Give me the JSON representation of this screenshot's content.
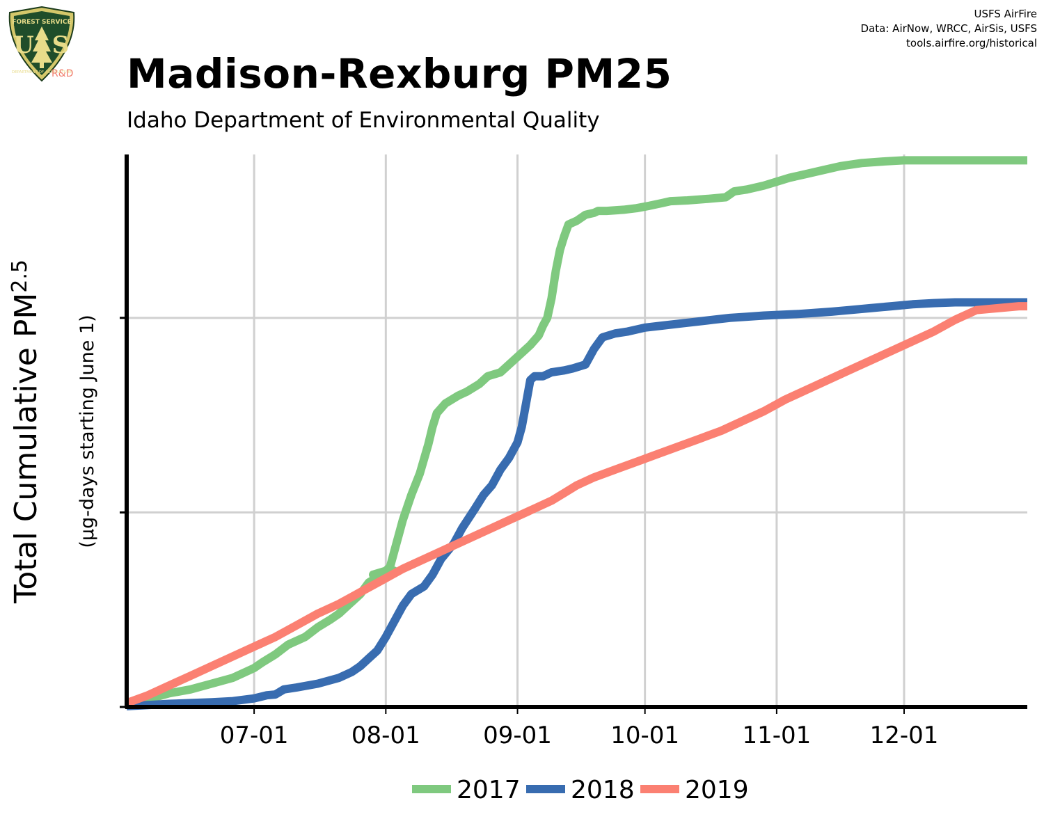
{
  "credits": {
    "line1": "USFS AirFire",
    "line2": "Data: AirNow, WRCC, AirSis, USFS",
    "line3": "tools.airfire.org/historical"
  },
  "logo": {
    "text_top": "FOREST SERVICE",
    "text_letters": "U S",
    "text_bottom": "DEPARTMENT OF AGRICULTURE",
    "tag": "R&D"
  },
  "title": "Madison-Rexburg PM25",
  "subtitle": "Idaho Department of Environmental Quality",
  "colors": {
    "2017": "#7fc97f",
    "2018": "#386cb0",
    "2019": "#fb8072"
  },
  "chart_data": {
    "type": "line",
    "title": "Madison-Rexburg PM25",
    "subtitle": "Idaho Department of Environmental Quality",
    "ylabel_main": "Total Cumulative PM",
    "ylabel_sub": "2.5",
    "ylabel_units": "(µg-days starting June 1)",
    "x_ticks": [
      "07-01",
      "08-01",
      "09-01",
      "10-01",
      "11-01",
      "12-01"
    ],
    "x_range_days": [
      0,
      212
    ],
    "y_range": [
      0,
      1420
    ],
    "y_ticks": [
      0,
      500,
      1000
    ],
    "grid": true,
    "legend_position": "bottom",
    "series": [
      {
        "name": "2017",
        "color": "#7fc97f",
        "points": [
          [
            0,
            5
          ],
          [
            5,
            20
          ],
          [
            10,
            35
          ],
          [
            15,
            45
          ],
          [
            20,
            60
          ],
          [
            25,
            75
          ],
          [
            28,
            90
          ],
          [
            30,
            100
          ],
          [
            32,
            115
          ],
          [
            35,
            135
          ],
          [
            38,
            160
          ],
          [
            42,
            180
          ],
          [
            45,
            205
          ],
          [
            48,
            225
          ],
          [
            50,
            240
          ],
          [
            52,
            260
          ],
          [
            55,
            290
          ],
          [
            57,
            320
          ],
          [
            60,
            340
          ],
          [
            63,
            350
          ],
          [
            60,
            345
          ],
          [
            58,
            340
          ],
          [
            61,
            350
          ],
          [
            62,
            360
          ],
          [
            63,
            400
          ],
          [
            64,
            440
          ],
          [
            65,
            480
          ],
          [
            67,
            545
          ],
          [
            69,
            600
          ],
          [
            71,
            675
          ],
          [
            72,
            720
          ],
          [
            73,
            755
          ],
          [
            75,
            780
          ],
          [
            78,
            800
          ],
          [
            80,
            810
          ],
          [
            83,
            830
          ],
          [
            85,
            850
          ],
          [
            88,
            860
          ],
          [
            90,
            880
          ],
          [
            93,
            910
          ],
          [
            95,
            930
          ],
          [
            97,
            955
          ],
          [
            98,
            980
          ],
          [
            99,
            1000
          ],
          [
            100,
            1050
          ],
          [
            101,
            1120
          ],
          [
            102,
            1175
          ],
          [
            103,
            1210
          ],
          [
            104,
            1240
          ],
          [
            106,
            1250
          ],
          [
            108,
            1265
          ],
          [
            110,
            1270
          ],
          [
            111,
            1275
          ],
          [
            113,
            1275
          ],
          [
            117,
            1278
          ],
          [
            120,
            1282
          ],
          [
            123,
            1288
          ],
          [
            126,
            1295
          ],
          [
            128,
            1300
          ],
          [
            132,
            1302
          ],
          [
            137,
            1306
          ],
          [
            141,
            1310
          ],
          [
            143,
            1325
          ],
          [
            146,
            1330
          ],
          [
            150,
            1340
          ],
          [
            153,
            1350
          ],
          [
            156,
            1360
          ],
          [
            160,
            1370
          ],
          [
            164,
            1380
          ],
          [
            168,
            1390
          ],
          [
            173,
            1398
          ],
          [
            178,
            1402
          ],
          [
            183,
            1405
          ],
          [
            195,
            1405
          ],
          [
            212,
            1405
          ]
        ]
      },
      {
        "name": "2018",
        "color": "#386cb0",
        "points": [
          [
            0,
            2
          ],
          [
            5,
            5
          ],
          [
            10,
            8
          ],
          [
            15,
            10
          ],
          [
            20,
            12
          ],
          [
            25,
            15
          ],
          [
            30,
            22
          ],
          [
            33,
            30
          ],
          [
            35,
            32
          ],
          [
            37,
            45
          ],
          [
            40,
            50
          ],
          [
            45,
            60
          ],
          [
            50,
            75
          ],
          [
            53,
            90
          ],
          [
            55,
            105
          ],
          [
            57,
            125
          ],
          [
            59,
            145
          ],
          [
            61,
            180
          ],
          [
            63,
            220
          ],
          [
            65,
            260
          ],
          [
            67,
            290
          ],
          [
            70,
            310
          ],
          [
            72,
            340
          ],
          [
            74,
            380
          ],
          [
            77,
            420
          ],
          [
            79,
            460
          ],
          [
            82,
            510
          ],
          [
            84,
            545
          ],
          [
            86,
            570
          ],
          [
            88,
            610
          ],
          [
            90,
            640
          ],
          [
            92,
            680
          ],
          [
            93,
            720
          ],
          [
            94,
            780
          ],
          [
            95,
            840
          ],
          [
            96,
            850
          ],
          [
            98,
            850
          ],
          [
            100,
            860
          ],
          [
            103,
            865
          ],
          [
            105,
            870
          ],
          [
            108,
            880
          ],
          [
            110,
            920
          ],
          [
            112,
            950
          ],
          [
            115,
            960
          ],
          [
            118,
            965
          ],
          [
            122,
            975
          ],
          [
            126,
            980
          ],
          [
            130,
            985
          ],
          [
            134,
            990
          ],
          [
            138,
            995
          ],
          [
            142,
            1000
          ],
          [
            146,
            1003
          ],
          [
            150,
            1006
          ],
          [
            154,
            1008
          ],
          [
            158,
            1010
          ],
          [
            162,
            1013
          ],
          [
            166,
            1016
          ],
          [
            170,
            1020
          ],
          [
            175,
            1025
          ],
          [
            180,
            1030
          ],
          [
            185,
            1035
          ],
          [
            190,
            1038
          ],
          [
            195,
            1040
          ],
          [
            200,
            1040
          ],
          [
            212,
            1040
          ]
        ]
      },
      {
        "name": "2019",
        "color": "#fb8072",
        "points": [
          [
            0,
            10
          ],
          [
            5,
            30
          ],
          [
            10,
            55
          ],
          [
            15,
            80
          ],
          [
            20,
            105
          ],
          [
            25,
            130
          ],
          [
            30,
            155
          ],
          [
            35,
            180
          ],
          [
            40,
            210
          ],
          [
            45,
            240
          ],
          [
            50,
            265
          ],
          [
            55,
            295
          ],
          [
            60,
            325
          ],
          [
            65,
            355
          ],
          [
            70,
            380
          ],
          [
            75,
            405
          ],
          [
            80,
            430
          ],
          [
            85,
            455
          ],
          [
            90,
            480
          ],
          [
            95,
            505
          ],
          [
            100,
            530
          ],
          [
            103,
            550
          ],
          [
            106,
            570
          ],
          [
            110,
            590
          ],
          [
            115,
            610
          ],
          [
            120,
            630
          ],
          [
            125,
            650
          ],
          [
            130,
            670
          ],
          [
            135,
            690
          ],
          [
            140,
            710
          ],
          [
            145,
            735
          ],
          [
            150,
            760
          ],
          [
            155,
            790
          ],
          [
            160,
            815
          ],
          [
            165,
            840
          ],
          [
            170,
            865
          ],
          [
            175,
            890
          ],
          [
            180,
            915
          ],
          [
            185,
            940
          ],
          [
            190,
            965
          ],
          [
            195,
            995
          ],
          [
            200,
            1020
          ],
          [
            210,
            1030
          ],
          [
            212,
            1030
          ]
        ]
      }
    ]
  }
}
